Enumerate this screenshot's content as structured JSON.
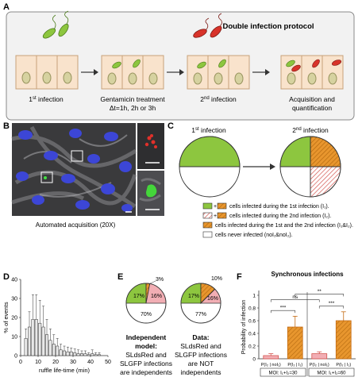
{
  "panel_letters": {
    "a": "A",
    "b": "B",
    "c": "C",
    "d": "D",
    "e": "E",
    "f": "F"
  },
  "panel_a": {
    "protocol_title": "Double infection protocol",
    "first_infection": "1",
    "first_infection_sup": "st",
    "first_infection_rest": " infection",
    "gentamicin": "Gentamicin treatment",
    "delta_t": "Δt=1h, 2h or 3h",
    "second_infection": "2",
    "second_infection_sup": "nd",
    "second_infection_rest": " infection",
    "acquisition_line1": "Acquisition and",
    "acquisition_line2": "quantification"
  },
  "panel_b": {
    "caption": "Automated acquisition (20X)"
  },
  "panel_c": {
    "first_label": "1",
    "first_sup": "st",
    "first_rest": " infection",
    "second_label": "2",
    "second_sup": "nd",
    "second_rest": " infection",
    "legend": [
      {
        "text": "cells infected during the 1st infection (I₁).",
        "plus": "+"
      },
      {
        "text": "cells infected during the 2nd infection (I₂).",
        "plus": "+"
      },
      {
        "text": "cells infected during the 1st and the 2nd infection (I₁&I₂).",
        "plus": ""
      },
      {
        "text": "cells never infected (noI₁&noI₂).",
        "plus": ""
      }
    ]
  },
  "panel_e": {
    "left_values": {
      "green": "17%",
      "orange": "3%",
      "pink": "16%",
      "white": "70%"
    },
    "right_values": {
      "green": "17%",
      "orange": "10%",
      "pink": "16%",
      "white": "77%"
    },
    "left_caption": [
      "Independent",
      "model:",
      "SLdsRed and",
      "SLGFP infections",
      "are independents"
    ],
    "right_caption": [
      "Data:",
      "SLdsRed and",
      "SLGFP infections",
      "are NOT",
      "independents"
    ]
  },
  "colors": {
    "green": "#8dc63f",
    "orange": "#e8962e",
    "orange_dark": "#c46a12",
    "pink": "#f2aeb4",
    "pink_dark": "#d4554f",
    "cell_fill": "#f9e3cc",
    "cell_stroke": "#c8a27a",
    "nucleus": "#d6d2a0",
    "bar_light": "#e8e8e8"
  },
  "chart_data": [
    {
      "type": "bar",
      "panel": "D",
      "xlabel": "ruffle life-time (min)",
      "ylabel": "% of events",
      "xlim": [
        0,
        50
      ],
      "ylim": [
        0,
        40
      ],
      "x_ticks": [
        0,
        10,
        20,
        30,
        40,
        50
      ],
      "y_ticks": [
        0,
        10,
        20,
        30,
        40
      ],
      "x": [
        3,
        5,
        7,
        9,
        11,
        13,
        15,
        17,
        19,
        21,
        23,
        25,
        27,
        29,
        31,
        33,
        35,
        37,
        39,
        41,
        43,
        45
      ],
      "values": [
        9,
        15,
        19,
        19,
        17,
        15,
        11,
        8,
        6,
        5,
        3,
        2.5,
        2,
        2,
        1.5,
        1,
        1,
        1,
        0.5,
        1,
        0.5,
        0.5
      ],
      "errors": [
        5,
        8,
        13,
        13,
        12,
        11,
        8,
        6,
        5,
        4,
        3,
        2.5,
        2.5,
        2,
        2,
        2,
        1.5,
        1.5,
        1,
        2,
        1,
        1
      ]
    },
    {
      "type": "bar",
      "panel": "F",
      "title": "Synchronous infections",
      "ylabel": "Probability of infection",
      "ylim": [
        0,
        1.0
      ],
      "y_ticks": [
        0,
        0.2,
        0.4,
        0.6,
        0.8,
        1.0
      ],
      "categories": [
        "P(I₂ | noI₁)",
        "P(I₂ | I₁)",
        "P(I₂ | noI₁)",
        "P(I₂ | I₁)"
      ],
      "values": [
        0.05,
        0.5,
        0.08,
        0.6
      ],
      "errors": [
        0.03,
        0.17,
        0.03,
        0.14
      ],
      "groups": [
        "MOI: I₁+I₂=30",
        "MOI: I₁+I₂=60"
      ],
      "significance": [
        "***",
        "***",
        "ns",
        "**"
      ]
    }
  ]
}
